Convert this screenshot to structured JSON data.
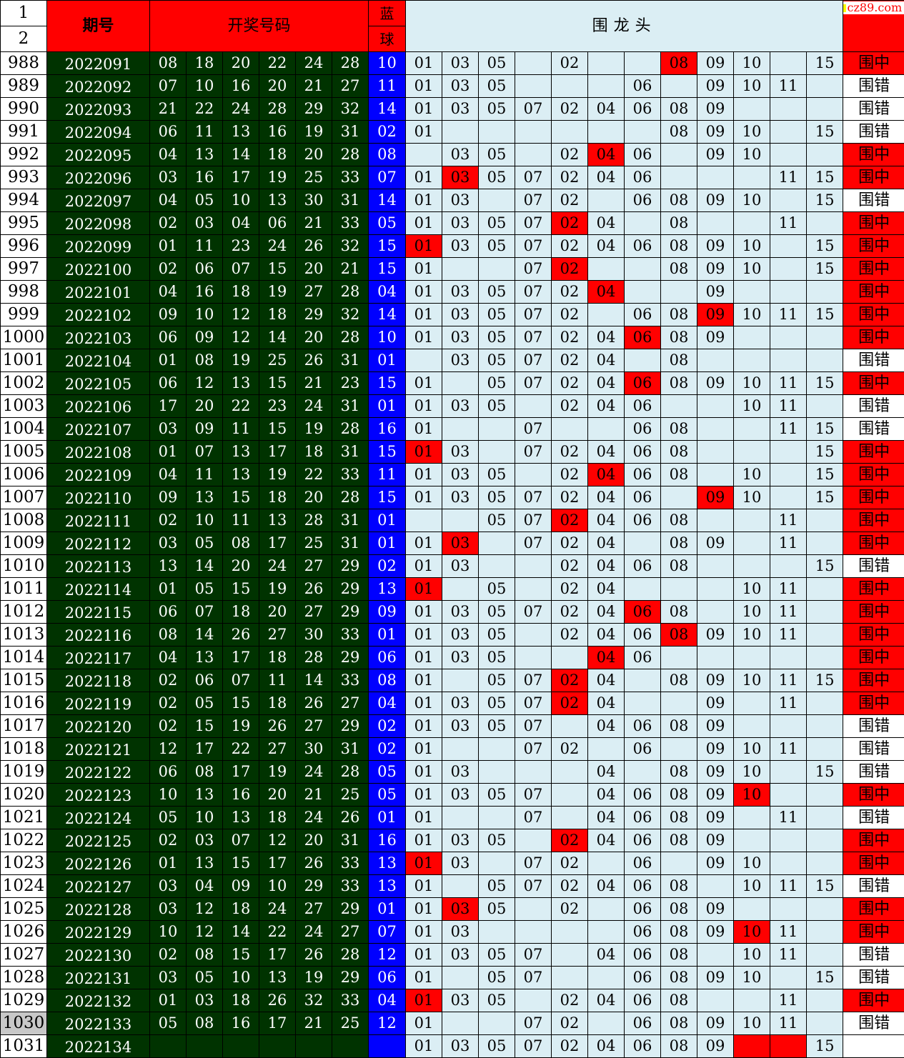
{
  "header": {
    "row_labels": [
      "1",
      "2"
    ],
    "period_label": "期号",
    "numbers_label": "开奖号码",
    "blue_label_1": "蓝",
    "blue_label_2": "球",
    "main_label": "围龙头",
    "site_logo": "cz89.com"
  },
  "colors": {
    "period_bg": "#003300",
    "blue_ball_bg": "#0000ff",
    "grid_bg": "#dbeef4",
    "hit_bg": "#ff0000",
    "header_bg": "#ff0000"
  },
  "grid_columns": [
    "01",
    "03",
    "05",
    "07",
    "02",
    "04",
    "06",
    "08",
    "09",
    "10",
    "11",
    "15"
  ],
  "rows": [
    {
      "idx": "988",
      "period": "2022091",
      "reds": [
        "08",
        "18",
        "20",
        "22",
        "24",
        "28"
      ],
      "blue": "10",
      "cells": [
        "01",
        "03",
        "05",
        "",
        "02",
        "",
        "",
        "08",
        "09",
        "10",
        "",
        "15"
      ],
      "hit": 7,
      "result": "围中",
      "result_hit": true
    },
    {
      "idx": "989",
      "period": "2022092",
      "reds": [
        "07",
        "10",
        "16",
        "20",
        "21",
        "27"
      ],
      "blue": "11",
      "cells": [
        "01",
        "03",
        "05",
        "",
        "",
        "",
        "06",
        "",
        "09",
        "10",
        "11",
        ""
      ],
      "hit": -1,
      "result": "围错",
      "result_hit": false
    },
    {
      "idx": "990",
      "period": "2022093",
      "reds": [
        "21",
        "22",
        "24",
        "28",
        "29",
        "32"
      ],
      "blue": "14",
      "cells": [
        "01",
        "03",
        "05",
        "07",
        "02",
        "04",
        "06",
        "08",
        "09",
        "",
        "",
        ""
      ],
      "hit": -1,
      "result": "围错",
      "result_hit": false
    },
    {
      "idx": "991",
      "period": "2022094",
      "reds": [
        "06",
        "11",
        "13",
        "16",
        "19",
        "31"
      ],
      "blue": "02",
      "cells": [
        "01",
        "",
        "",
        "",
        "",
        "",
        "",
        "08",
        "09",
        "10",
        "",
        "15"
      ],
      "hit": -1,
      "result": "围错",
      "result_hit": false
    },
    {
      "idx": "992",
      "period": "2022095",
      "reds": [
        "04",
        "13",
        "14",
        "18",
        "20",
        "28"
      ],
      "blue": "08",
      "cells": [
        "",
        "03",
        "05",
        "",
        "02",
        "04",
        "06",
        "",
        "09",
        "10",
        "",
        ""
      ],
      "hit": 5,
      "result": "围中",
      "result_hit": true
    },
    {
      "idx": "993",
      "period": "2022096",
      "reds": [
        "03",
        "16",
        "17",
        "19",
        "25",
        "33"
      ],
      "blue": "07",
      "cells": [
        "01",
        "03",
        "05",
        "07",
        "02",
        "04",
        "06",
        "",
        "",
        "",
        "11",
        "15"
      ],
      "hit": 1,
      "result": "围中",
      "result_hit": true
    },
    {
      "idx": "994",
      "period": "2022097",
      "reds": [
        "04",
        "05",
        "10",
        "13",
        "30",
        "31"
      ],
      "blue": "14",
      "cells": [
        "01",
        "03",
        "",
        "07",
        "02",
        "",
        "06",
        "08",
        "09",
        "10",
        "",
        "15"
      ],
      "hit": -1,
      "result": "围错",
      "result_hit": false
    },
    {
      "idx": "995",
      "period": "2022098",
      "reds": [
        "02",
        "03",
        "04",
        "06",
        "21",
        "33"
      ],
      "blue": "05",
      "cells": [
        "01",
        "03",
        "05",
        "07",
        "02",
        "04",
        "",
        "08",
        "",
        "",
        "11",
        ""
      ],
      "hit": 4,
      "result": "围中",
      "result_hit": true
    },
    {
      "idx": "996",
      "period": "2022099",
      "reds": [
        "01",
        "11",
        "23",
        "24",
        "26",
        "32"
      ],
      "blue": "15",
      "cells": [
        "01",
        "03",
        "05",
        "07",
        "02",
        "04",
        "06",
        "08",
        "09",
        "10",
        "",
        "15"
      ],
      "hit": 0,
      "result": "围中",
      "result_hit": true
    },
    {
      "idx": "997",
      "period": "2022100",
      "reds": [
        "02",
        "06",
        "07",
        "15",
        "20",
        "21"
      ],
      "blue": "15",
      "cells": [
        "01",
        "",
        "",
        "07",
        "02",
        "",
        "",
        "08",
        "09",
        "10",
        "",
        "15"
      ],
      "hit": 4,
      "result": "围中",
      "result_hit": true
    },
    {
      "idx": "998",
      "period": "2022101",
      "reds": [
        "04",
        "16",
        "18",
        "19",
        "27",
        "28"
      ],
      "blue": "04",
      "cells": [
        "01",
        "03",
        "05",
        "07",
        "02",
        "04",
        "",
        "",
        "09",
        "",
        "",
        ""
      ],
      "hit": 5,
      "result": "围中",
      "result_hit": true
    },
    {
      "idx": "999",
      "period": "2022102",
      "reds": [
        "09",
        "10",
        "12",
        "18",
        "29",
        "32"
      ],
      "blue": "14",
      "cells": [
        "01",
        "03",
        "05",
        "07",
        "02",
        "",
        "06",
        "08",
        "09",
        "10",
        "11",
        "15"
      ],
      "hit": 8,
      "result": "围中",
      "result_hit": true
    },
    {
      "idx": "1000",
      "period": "2022103",
      "reds": [
        "06",
        "09",
        "12",
        "14",
        "20",
        "28"
      ],
      "blue": "10",
      "cells": [
        "01",
        "03",
        "05",
        "07",
        "02",
        "04",
        "06",
        "08",
        "09",
        "",
        "",
        ""
      ],
      "hit": 6,
      "result": "围中",
      "result_hit": true
    },
    {
      "idx": "1001",
      "period": "2022104",
      "reds": [
        "01",
        "08",
        "19",
        "25",
        "26",
        "31"
      ],
      "blue": "01",
      "cells": [
        "",
        "03",
        "05",
        "07",
        "02",
        "04",
        "",
        "08",
        "",
        "",
        "",
        ""
      ],
      "hit": -1,
      "result": "围错",
      "result_hit": false
    },
    {
      "idx": "1002",
      "period": "2022105",
      "reds": [
        "06",
        "12",
        "13",
        "15",
        "21",
        "23"
      ],
      "blue": "15",
      "cells": [
        "01",
        "",
        "05",
        "07",
        "02",
        "04",
        "06",
        "08",
        "09",
        "10",
        "11",
        "15"
      ],
      "hit": 6,
      "result": "围中",
      "result_hit": true
    },
    {
      "idx": "1003",
      "period": "2022106",
      "reds": [
        "17",
        "20",
        "22",
        "23",
        "24",
        "31"
      ],
      "blue": "01",
      "cells": [
        "01",
        "03",
        "05",
        "",
        "02",
        "04",
        "06",
        "",
        "",
        "10",
        "11",
        ""
      ],
      "hit": -1,
      "result": "围错",
      "result_hit": false
    },
    {
      "idx": "1004",
      "period": "2022107",
      "reds": [
        "03",
        "09",
        "11",
        "15",
        "19",
        "28"
      ],
      "blue": "16",
      "cells": [
        "01",
        "",
        "",
        "07",
        "",
        "",
        "06",
        "08",
        "",
        "",
        "11",
        "15"
      ],
      "hit": -1,
      "result": "围错",
      "result_hit": false
    },
    {
      "idx": "1005",
      "period": "2022108",
      "reds": [
        "01",
        "07",
        "13",
        "17",
        "18",
        "31"
      ],
      "blue": "15",
      "cells": [
        "01",
        "03",
        "",
        "07",
        "02",
        "04",
        "06",
        "08",
        "",
        "",
        "",
        "15"
      ],
      "hit": 0,
      "result": "围中",
      "result_hit": true
    },
    {
      "idx": "1006",
      "period": "2022109",
      "reds": [
        "04",
        "11",
        "13",
        "19",
        "22",
        "33"
      ],
      "blue": "11",
      "cells": [
        "01",
        "03",
        "05",
        "",
        "02",
        "04",
        "06",
        "08",
        "",
        "10",
        "",
        "15"
      ],
      "hit": 5,
      "result": "围中",
      "result_hit": true
    },
    {
      "idx": "1007",
      "period": "2022110",
      "reds": [
        "09",
        "13",
        "15",
        "18",
        "20",
        "28"
      ],
      "blue": "15",
      "cells": [
        "01",
        "03",
        "05",
        "07",
        "02",
        "04",
        "06",
        "",
        "09",
        "10",
        "",
        "15"
      ],
      "hit": 8,
      "result": "围中",
      "result_hit": true
    },
    {
      "idx": "1008",
      "period": "2022111",
      "reds": [
        "02",
        "10",
        "11",
        "13",
        "28",
        "31"
      ],
      "blue": "01",
      "cells": [
        "",
        "",
        "05",
        "07",
        "02",
        "04",
        "06",
        "08",
        "",
        "",
        "11",
        ""
      ],
      "hit": 4,
      "result": "围中",
      "result_hit": true
    },
    {
      "idx": "1009",
      "period": "2022112",
      "reds": [
        "03",
        "05",
        "08",
        "17",
        "25",
        "31"
      ],
      "blue": "01",
      "cells": [
        "01",
        "03",
        "",
        "07",
        "02",
        "04",
        "",
        "08",
        "09",
        "",
        "11",
        ""
      ],
      "hit": 1,
      "result": "围中",
      "result_hit": true
    },
    {
      "idx": "1010",
      "period": "2022113",
      "reds": [
        "13",
        "14",
        "20",
        "24",
        "27",
        "29"
      ],
      "blue": "02",
      "cells": [
        "01",
        "03",
        "",
        "",
        "02",
        "04",
        "06",
        "08",
        "",
        "",
        "",
        "15"
      ],
      "hit": -1,
      "result": "围错",
      "result_hit": false
    },
    {
      "idx": "1011",
      "period": "2022114",
      "reds": [
        "01",
        "05",
        "15",
        "19",
        "26",
        "29"
      ],
      "blue": "13",
      "cells": [
        "01",
        "",
        "05",
        "",
        "02",
        "04",
        "",
        "",
        "",
        "10",
        "11",
        ""
      ],
      "hit": 0,
      "result": "围中",
      "result_hit": true
    },
    {
      "idx": "1012",
      "period": "2022115",
      "reds": [
        "06",
        "07",
        "18",
        "20",
        "27",
        "29"
      ],
      "blue": "09",
      "cells": [
        "01",
        "03",
        "05",
        "07",
        "02",
        "04",
        "06",
        "08",
        "",
        "10",
        "11",
        ""
      ],
      "hit": 6,
      "result": "围中",
      "result_hit": true
    },
    {
      "idx": "1013",
      "period": "2022116",
      "reds": [
        "08",
        "14",
        "26",
        "27",
        "30",
        "33"
      ],
      "blue": "01",
      "cells": [
        "01",
        "03",
        "05",
        "",
        "02",
        "04",
        "06",
        "08",
        "09",
        "10",
        "11",
        ""
      ],
      "hit": 7,
      "result": "围中",
      "result_hit": true
    },
    {
      "idx": "1014",
      "period": "2022117",
      "reds": [
        "04",
        "13",
        "17",
        "18",
        "28",
        "29"
      ],
      "blue": "06",
      "cells": [
        "01",
        "03",
        "05",
        "",
        "",
        "04",
        "06",
        "",
        "",
        "",
        "",
        ""
      ],
      "hit": 5,
      "result": "围中",
      "result_hit": true
    },
    {
      "idx": "1015",
      "period": "2022118",
      "reds": [
        "02",
        "06",
        "07",
        "11",
        "14",
        "33"
      ],
      "blue": "08",
      "cells": [
        "01",
        "",
        "05",
        "07",
        "02",
        "04",
        "",
        "08",
        "09",
        "10",
        "11",
        "15"
      ],
      "hit": 4,
      "result": "围中",
      "result_hit": true
    },
    {
      "idx": "1016",
      "period": "2022119",
      "reds": [
        "02",
        "05",
        "15",
        "18",
        "26",
        "27"
      ],
      "blue": "04",
      "cells": [
        "01",
        "03",
        "05",
        "07",
        "02",
        "04",
        "",
        "",
        "09",
        "",
        "11",
        ""
      ],
      "hit": 4,
      "result": "围中",
      "result_hit": true
    },
    {
      "idx": "1017",
      "period": "2022120",
      "reds": [
        "02",
        "15",
        "19",
        "26",
        "27",
        "29"
      ],
      "blue": "02",
      "cells": [
        "01",
        "03",
        "05",
        "07",
        "",
        "04",
        "06",
        "08",
        "09",
        "",
        "",
        ""
      ],
      "hit": -1,
      "result": "围错",
      "result_hit": false
    },
    {
      "idx": "1018",
      "period": "2022121",
      "reds": [
        "12",
        "17",
        "22",
        "27",
        "30",
        "31"
      ],
      "blue": "02",
      "cells": [
        "01",
        "",
        "",
        "07",
        "02",
        "",
        "06",
        "",
        "09",
        "10",
        "11",
        ""
      ],
      "hit": -1,
      "result": "围错",
      "result_hit": false
    },
    {
      "idx": "1019",
      "period": "2022122",
      "reds": [
        "06",
        "08",
        "17",
        "19",
        "24",
        "28"
      ],
      "blue": "05",
      "cells": [
        "01",
        "03",
        "",
        "",
        "",
        "04",
        "",
        "08",
        "09",
        "10",
        "",
        "15"
      ],
      "hit": -1,
      "result": "围错",
      "result_hit": false
    },
    {
      "idx": "1020",
      "period": "2022123",
      "reds": [
        "10",
        "13",
        "16",
        "20",
        "21",
        "25"
      ],
      "blue": "05",
      "cells": [
        "01",
        "03",
        "05",
        "07",
        "",
        "04",
        "06",
        "08",
        "09",
        "10",
        "",
        ""
      ],
      "hit": 9,
      "result": "围中",
      "result_hit": true
    },
    {
      "idx": "1021",
      "period": "2022124",
      "reds": [
        "05",
        "10",
        "13",
        "18",
        "24",
        "26"
      ],
      "blue": "01",
      "cells": [
        "01",
        "",
        "",
        "07",
        "",
        "04",
        "06",
        "08",
        "09",
        "",
        "11",
        ""
      ],
      "hit": -1,
      "result": "围错",
      "result_hit": false
    },
    {
      "idx": "1022",
      "period": "2022125",
      "reds": [
        "02",
        "03",
        "07",
        "12",
        "20",
        "31"
      ],
      "blue": "16",
      "cells": [
        "01",
        "03",
        "05",
        "",
        "02",
        "04",
        "06",
        "08",
        "09",
        "",
        "",
        ""
      ],
      "hit": 4,
      "result": "围中",
      "result_hit": true
    },
    {
      "idx": "1023",
      "period": "2022126",
      "reds": [
        "01",
        "13",
        "15",
        "17",
        "26",
        "33"
      ],
      "blue": "13",
      "cells": [
        "01",
        "03",
        "",
        "07",
        "02",
        "",
        "06",
        "",
        "09",
        "10",
        "",
        ""
      ],
      "hit": 0,
      "result": "围中",
      "result_hit": true
    },
    {
      "idx": "1024",
      "period": "2022127",
      "reds": [
        "03",
        "04",
        "09",
        "10",
        "29",
        "33"
      ],
      "blue": "13",
      "cells": [
        "01",
        "",
        "05",
        "07",
        "02",
        "04",
        "06",
        "08",
        "",
        "10",
        "11",
        "15"
      ],
      "hit": -1,
      "result": "围错",
      "result_hit": false
    },
    {
      "idx": "1025",
      "period": "2022128",
      "reds": [
        "03",
        "12",
        "18",
        "24",
        "27",
        "29"
      ],
      "blue": "01",
      "cells": [
        "01",
        "03",
        "05",
        "",
        "02",
        "",
        "06",
        "08",
        "09",
        "",
        "",
        ""
      ],
      "hit": 1,
      "result": "围中",
      "result_hit": true
    },
    {
      "idx": "1026",
      "period": "2022129",
      "reds": [
        "10",
        "12",
        "14",
        "22",
        "24",
        "27"
      ],
      "blue": "07",
      "cells": [
        "01",
        "03",
        "",
        "",
        "",
        "",
        "06",
        "08",
        "09",
        "10",
        "11",
        ""
      ],
      "hit": 9,
      "result": "围中",
      "result_hit": true
    },
    {
      "idx": "1027",
      "period": "2022130",
      "reds": [
        "02",
        "08",
        "15",
        "17",
        "26",
        "28"
      ],
      "blue": "12",
      "cells": [
        "01",
        "03",
        "05",
        "07",
        "",
        "04",
        "06",
        "08",
        "",
        "10",
        "11",
        ""
      ],
      "hit": -1,
      "result": "围错",
      "result_hit": false
    },
    {
      "idx": "1028",
      "period": "2022131",
      "reds": [
        "03",
        "05",
        "10",
        "13",
        "19",
        "29"
      ],
      "blue": "06",
      "cells": [
        "01",
        "",
        "05",
        "07",
        "",
        "",
        "06",
        "08",
        "09",
        "10",
        "",
        "15"
      ],
      "hit": -1,
      "result": "围错",
      "result_hit": false
    },
    {
      "idx": "1029",
      "period": "2022132",
      "reds": [
        "01",
        "03",
        "18",
        "26",
        "32",
        "33"
      ],
      "blue": "04",
      "cells": [
        "01",
        "03",
        "05",
        "",
        "02",
        "04",
        "06",
        "08",
        "",
        "",
        "11",
        ""
      ],
      "hit": 0,
      "result": "围中",
      "result_hit": true
    },
    {
      "idx": "1030",
      "period": "2022133",
      "reds": [
        "05",
        "08",
        "16",
        "17",
        "21",
        "25"
      ],
      "blue": "12",
      "cells": [
        "01",
        "",
        "",
        "07",
        "02",
        "",
        "06",
        "08",
        "09",
        "10",
        "11",
        ""
      ],
      "hit": -1,
      "result": "围错",
      "result_hit": false
    },
    {
      "idx": "1031",
      "period": "2022134",
      "reds": [
        "",
        "",
        "",
        "",
        "",
        ""
      ],
      "blue": "",
      "cells": [
        "01",
        "03",
        "05",
        "07",
        "02",
        "04",
        "06",
        "08",
        "09",
        "",
        "",
        "15"
      ],
      "hit": -1,
      "last_red_fills": [
        9,
        10
      ],
      "result": "",
      "result_hit": false
    }
  ]
}
